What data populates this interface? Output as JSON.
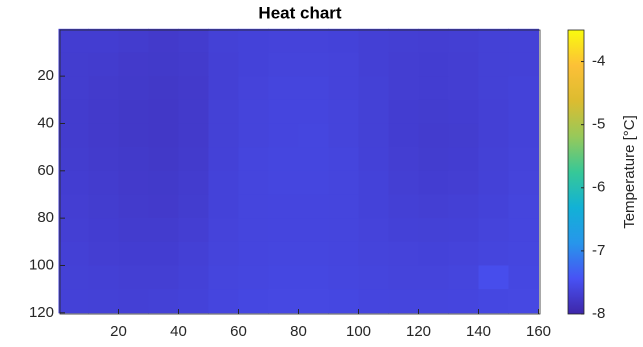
{
  "chart_data": {
    "type": "heatmap",
    "title": "Heat chart",
    "colorbar_label": "Temperature [°C]",
    "colormap": "parula",
    "x": [
      5,
      15,
      25,
      35,
      45,
      55,
      65,
      75,
      85,
      95,
      105,
      115,
      125,
      135,
      145,
      155
    ],
    "y": [
      5,
      15,
      25,
      35,
      45,
      55,
      65,
      75,
      85,
      95,
      105,
      115
    ],
    "z": [
      [
        -7.7,
        -7.7,
        -7.72,
        -7.74,
        -7.72,
        -7.66,
        -7.64,
        -7.63,
        -7.63,
        -7.64,
        -7.67,
        -7.68,
        -7.69,
        -7.68,
        -7.66,
        -7.65
      ],
      [
        -7.71,
        -7.72,
        -7.74,
        -7.75,
        -7.73,
        -7.67,
        -7.64,
        -7.62,
        -7.62,
        -7.63,
        -7.67,
        -7.69,
        -7.7,
        -7.69,
        -7.66,
        -7.65
      ],
      [
        -7.71,
        -7.73,
        -7.75,
        -7.76,
        -7.74,
        -7.67,
        -7.63,
        -7.61,
        -7.61,
        -7.63,
        -7.66,
        -7.69,
        -7.7,
        -7.69,
        -7.66,
        -7.64
      ],
      [
        -7.72,
        -7.74,
        -7.76,
        -7.77,
        -7.74,
        -7.66,
        -7.62,
        -7.6,
        -7.6,
        -7.62,
        -7.66,
        -7.7,
        -7.71,
        -7.7,
        -7.67,
        -7.64
      ],
      [
        -7.72,
        -7.74,
        -7.76,
        -7.77,
        -7.74,
        -7.66,
        -7.62,
        -7.6,
        -7.59,
        -7.62,
        -7.66,
        -7.7,
        -7.72,
        -7.71,
        -7.67,
        -7.64
      ],
      [
        -7.71,
        -7.73,
        -7.75,
        -7.76,
        -7.73,
        -7.65,
        -7.61,
        -7.59,
        -7.59,
        -7.61,
        -7.65,
        -7.69,
        -7.71,
        -7.7,
        -7.66,
        -7.63
      ],
      [
        -7.7,
        -7.72,
        -7.74,
        -7.75,
        -7.72,
        -7.64,
        -7.61,
        -7.59,
        -7.59,
        -7.61,
        -7.64,
        -7.68,
        -7.7,
        -7.69,
        -7.65,
        -7.62
      ],
      [
        -7.69,
        -7.71,
        -7.73,
        -7.74,
        -7.71,
        -7.64,
        -7.61,
        -7.6,
        -7.6,
        -7.61,
        -7.64,
        -7.67,
        -7.68,
        -7.67,
        -7.64,
        -7.61
      ],
      [
        -7.68,
        -7.7,
        -7.72,
        -7.72,
        -7.69,
        -7.63,
        -7.61,
        -7.6,
        -7.6,
        -7.61,
        -7.63,
        -7.65,
        -7.66,
        -7.65,
        -7.62,
        -7.6
      ],
      [
        -7.67,
        -7.69,
        -7.7,
        -7.7,
        -7.67,
        -7.62,
        -7.6,
        -7.59,
        -7.59,
        -7.6,
        -7.62,
        -7.63,
        -7.64,
        -7.63,
        -7.61,
        -7.59
      ],
      [
        -7.66,
        -7.67,
        -7.68,
        -7.68,
        -7.65,
        -7.61,
        -7.59,
        -7.58,
        -7.58,
        -7.59,
        -7.61,
        -7.62,
        -7.62,
        -7.61,
        -7.5,
        -7.58
      ],
      [
        -7.65,
        -7.66,
        -7.67,
        -7.66,
        -7.64,
        -7.6,
        -7.58,
        -7.57,
        -7.57,
        -7.58,
        -7.6,
        -7.61,
        -7.61,
        -7.6,
        -7.58,
        -7.57
      ]
    ],
    "xlim": [
      0.5,
      160.5
    ],
    "ylim": [
      120.5,
      0.5
    ],
    "clim": [
      -8,
      -3.5
    ],
    "xticks": [
      20,
      40,
      60,
      80,
      100,
      120,
      140,
      160
    ],
    "yticks": [
      20,
      40,
      60,
      80,
      100,
      120
    ],
    "cticks": [
      -8,
      -7,
      -6,
      -5,
      -4
    ]
  }
}
